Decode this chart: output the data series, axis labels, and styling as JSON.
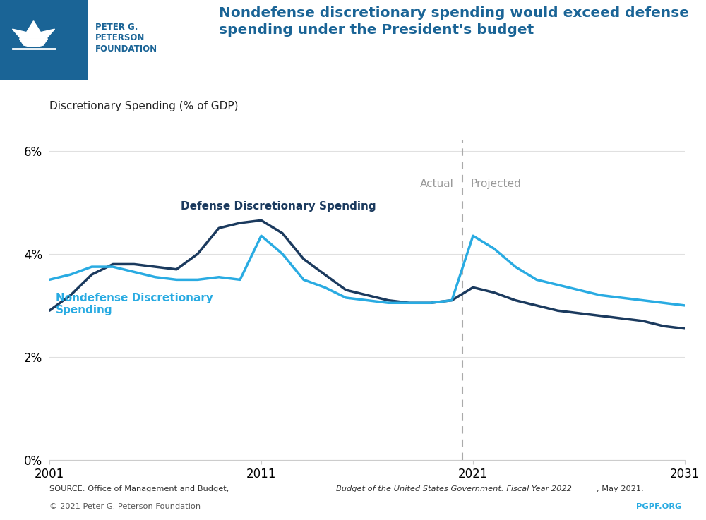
{
  "defense_years": [
    2001,
    2002,
    2003,
    2004,
    2005,
    2006,
    2007,
    2008,
    2009,
    2010,
    2011,
    2012,
    2013,
    2014,
    2015,
    2016,
    2017,
    2018,
    2019,
    2020,
    2021,
    2022,
    2023,
    2024,
    2025,
    2026,
    2027,
    2028,
    2029,
    2030,
    2031
  ],
  "defense_values": [
    2.9,
    3.2,
    3.6,
    3.8,
    3.8,
    3.75,
    3.7,
    4.0,
    4.5,
    4.6,
    4.65,
    4.4,
    3.9,
    3.6,
    3.3,
    3.2,
    3.1,
    3.05,
    3.05,
    3.1,
    3.35,
    3.25,
    3.1,
    3.0,
    2.9,
    2.85,
    2.8,
    2.75,
    2.7,
    2.6,
    2.55
  ],
  "nondefense_years": [
    2001,
    2002,
    2003,
    2004,
    2005,
    2006,
    2007,
    2008,
    2009,
    2010,
    2011,
    2012,
    2013,
    2014,
    2015,
    2016,
    2017,
    2018,
    2019,
    2020,
    2021,
    2022,
    2023,
    2024,
    2025,
    2026,
    2027,
    2028,
    2029,
    2030,
    2031
  ],
  "nondefense_values": [
    3.5,
    3.6,
    3.75,
    3.75,
    3.65,
    3.55,
    3.5,
    3.5,
    3.55,
    3.5,
    4.35,
    4.0,
    3.5,
    3.35,
    3.15,
    3.1,
    3.05,
    3.05,
    3.05,
    3.1,
    4.35,
    4.1,
    3.75,
    3.5,
    3.4,
    3.3,
    3.2,
    3.15,
    3.1,
    3.05,
    3.0
  ],
  "defense_color": "#1b3a5e",
  "nondefense_color": "#29abe2",
  "divider_year": 2020.5,
  "chart_subtitle": "Discretionary Spending (% of GDP)",
  "defense_label": "Defense Discretionary Spending",
  "nondefense_label": "Nondefense Discretionary\nSpending",
  "actual_label": "Actual",
  "projected_label": "Projected",
  "ylim": [
    0,
    6.2
  ],
  "yticks": [
    0,
    2,
    4,
    6
  ],
  "ytick_labels": [
    "0%",
    "2%",
    "4%",
    "6%"
  ],
  "xlim": [
    2001,
    2031
  ],
  "xticks": [
    2001,
    2011,
    2021,
    2031
  ],
  "pgpf_color": "#29abe2",
  "divider_color": "#aaaaaa",
  "actual_projected_color": "#999999",
  "header_blue": "#1a6496",
  "logo_bg": "#1a5276",
  "line_width": 2.5
}
